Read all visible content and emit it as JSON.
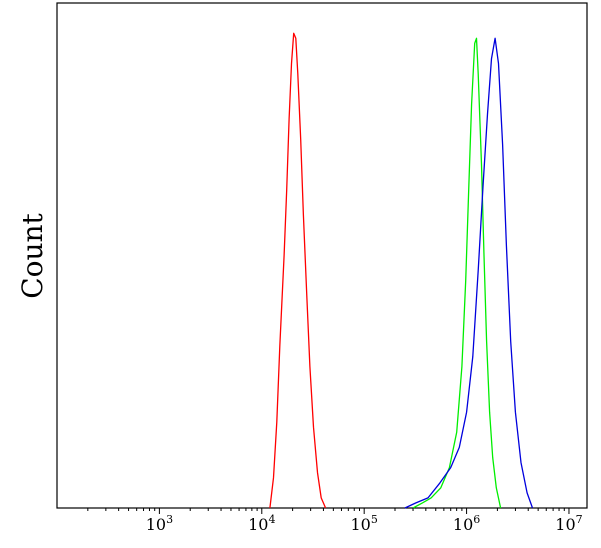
{
  "chart_data": {
    "type": "line",
    "title": "",
    "xlabel": "",
    "ylabel": "Count",
    "x_scale": "log",
    "xlim": [
      100,
      15000000
    ],
    "ylim": [
      0,
      100
    ],
    "grid": false,
    "x_ticks": [
      {
        "value": 1000,
        "base": "10",
        "exp": "3"
      },
      {
        "value": 10000,
        "base": "10",
        "exp": "4"
      },
      {
        "value": 100000,
        "base": "10",
        "exp": "5"
      },
      {
        "value": 1000000,
        "base": "10",
        "exp": "6"
      },
      {
        "value": 10000000,
        "base": "10",
        "exp": "7"
      }
    ],
    "series": [
      {
        "color": "#ff0000",
        "points": [
          [
            12000,
            0
          ],
          [
            13000,
            6
          ],
          [
            14000,
            17
          ],
          [
            15000,
            32
          ],
          [
            16500,
            50
          ],
          [
            17500,
            63
          ],
          [
            18500,
            77
          ],
          [
            19500,
            88
          ],
          [
            20500,
            94
          ],
          [
            21500,
            93
          ],
          [
            22500,
            86
          ],
          [
            24000,
            73
          ],
          [
            25500,
            58
          ],
          [
            27500,
            42
          ],
          [
            29500,
            28
          ],
          [
            32000,
            16
          ],
          [
            35000,
            7
          ],
          [
            38000,
            2
          ],
          [
            42000,
            0
          ]
        ]
      },
      {
        "color": "#00ee00",
        "points": [
          [
            300000,
            0
          ],
          [
            370000,
            1
          ],
          [
            450000,
            2
          ],
          [
            560000,
            4
          ],
          [
            680000,
            8
          ],
          [
            800000,
            15
          ],
          [
            900000,
            28
          ],
          [
            980000,
            45
          ],
          [
            1050000,
            63
          ],
          [
            1120000,
            80
          ],
          [
            1200000,
            92
          ],
          [
            1250000,
            93
          ],
          [
            1300000,
            86
          ],
          [
            1400000,
            68
          ],
          [
            1480000,
            50
          ],
          [
            1570000,
            33
          ],
          [
            1680000,
            19
          ],
          [
            1800000,
            10
          ],
          [
            1950000,
            4
          ],
          [
            2150000,
            0
          ]
        ]
      },
      {
        "color": "#0000dd",
        "points": [
          [
            250000,
            0
          ],
          [
            320000,
            1
          ],
          [
            420000,
            2
          ],
          [
            550000,
            5
          ],
          [
            700000,
            8
          ],
          [
            850000,
            12
          ],
          [
            1000000,
            19
          ],
          [
            1150000,
            30
          ],
          [
            1300000,
            47
          ],
          [
            1450000,
            64
          ],
          [
            1600000,
            78
          ],
          [
            1750000,
            89
          ],
          [
            1900000,
            93
          ],
          [
            2050000,
            88
          ],
          [
            2250000,
            72
          ],
          [
            2450000,
            52
          ],
          [
            2700000,
            33
          ],
          [
            3000000,
            19
          ],
          [
            3400000,
            9
          ],
          [
            3900000,
            3
          ],
          [
            4400000,
            0
          ]
        ]
      }
    ]
  }
}
